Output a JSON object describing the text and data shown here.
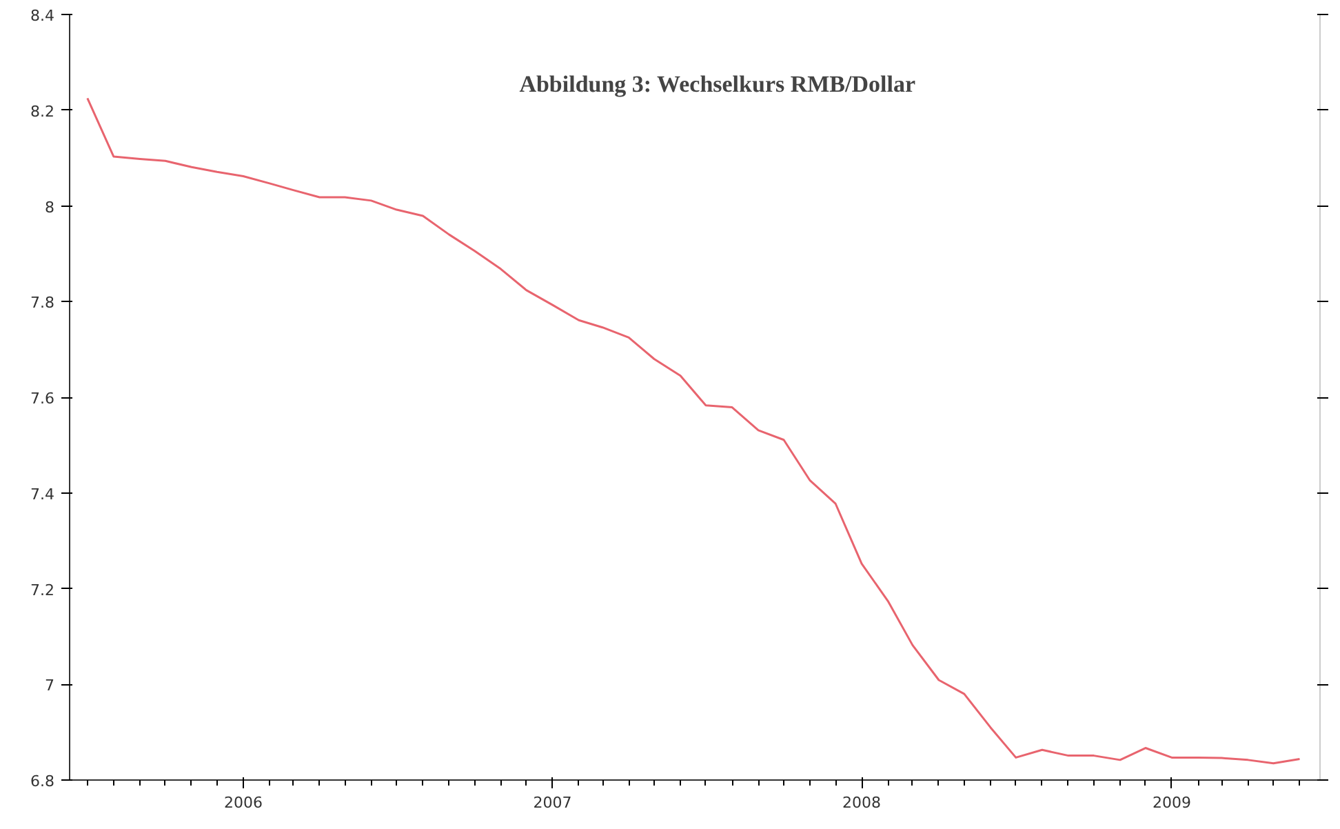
{
  "chart_data": {
    "type": "line",
    "title": "Abbildung 3: Wechselkurs RMB/Dollar",
    "x": [
      "2005-07",
      "2005-08",
      "2005-09",
      "2005-10",
      "2005-11",
      "2005-12",
      "2006-01",
      "2006-02",
      "2006-03",
      "2006-04",
      "2006-05",
      "2006-06",
      "2006-07",
      "2006-08",
      "2006-09",
      "2006-10",
      "2006-11",
      "2006-12",
      "2007-01",
      "2007-02",
      "2007-03",
      "2007-04",
      "2007-05",
      "2007-06",
      "2007-07",
      "2007-08",
      "2007-09",
      "2007-10",
      "2007-11",
      "2007-12",
      "2008-01",
      "2008-02",
      "2008-03",
      "2008-04",
      "2008-05",
      "2008-06",
      "2008-07",
      "2008-08",
      "2008-09",
      "2008-10",
      "2008-11",
      "2008-12",
      "2009-01",
      "2009-02",
      "2009-03",
      "2009-04",
      "2009-05",
      "2009-06"
    ],
    "series": [
      {
        "color": "#e8646e",
        "values": [
          8.225,
          8.103,
          8.098,
          8.094,
          8.081,
          8.071,
          8.062,
          8.047,
          8.033,
          8.018,
          8.018,
          8.011,
          7.992,
          7.979,
          7.94,
          7.906,
          7.868,
          7.824,
          7.793,
          7.761,
          7.746,
          7.725,
          7.68,
          7.645,
          7.583,
          7.579,
          7.531,
          7.511,
          7.426,
          7.378,
          7.252,
          7.174,
          7.082,
          7.009,
          6.98,
          6.91,
          6.847,
          6.863,
          6.851,
          6.851,
          6.842,
          6.867,
          6.847,
          6.847,
          6.846,
          6.842,
          6.835,
          6.844
        ]
      }
    ],
    "xlim": [
      "2005-06-10",
      "2009-06-25"
    ],
    "xticks": [
      {
        "value": "2006-01",
        "label": "2006"
      },
      {
        "value": "2007-01",
        "label": "2007"
      },
      {
        "value": "2008-01",
        "label": "2008"
      },
      {
        "value": "2009-01",
        "label": "2009"
      }
    ],
    "ylim": [
      6.8,
      8.4
    ],
    "yticks": [
      6.8,
      7,
      7.2,
      7.4,
      7.6,
      7.8,
      8,
      8.2,
      8.4
    ],
    "grid": false,
    "marker": "none",
    "line_style": "solid"
  }
}
